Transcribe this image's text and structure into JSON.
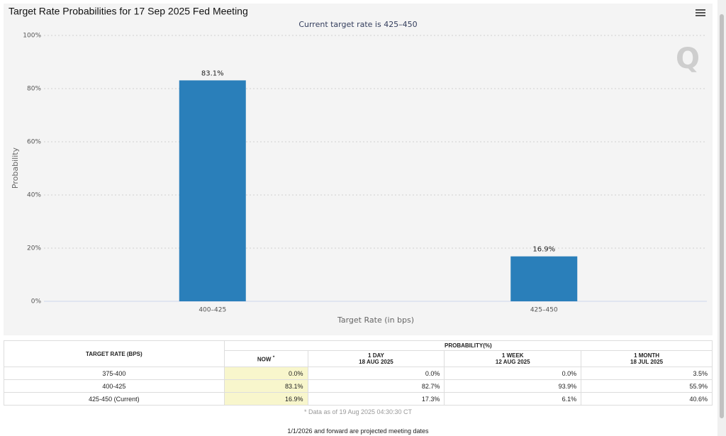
{
  "chart_data": {
    "type": "bar",
    "title": "Target Rate Probabilities for 17 Sep 2025 Fed Meeting",
    "subtitle": "Current target rate is 425–450",
    "y_label": "Probability",
    "x_label": "Target Rate (in bps)",
    "categories": [
      "400–425",
      "425–450"
    ],
    "values": [
      83.1,
      16.9
    ],
    "value_labels": [
      "83.1%",
      "16.9%"
    ],
    "color": "#2a7fba",
    "ylim": [
      0,
      100
    ],
    "yticks": [
      {
        "value": 0,
        "label": "0%"
      },
      {
        "value": 20,
        "label": "20%"
      },
      {
        "value": 40,
        "label": "40%"
      },
      {
        "value": 60,
        "label": "60%"
      },
      {
        "value": 80,
        "label": "80%"
      },
      {
        "value": 100,
        "label": "100%"
      }
    ],
    "grid": true
  },
  "table": {
    "header": {
      "rate": "TARGET RATE (BPS)",
      "probability": "PROBABILITY(%)"
    },
    "columns": [
      {
        "label": "NOW",
        "note": "*"
      },
      {
        "label": "1 DAY",
        "date": "18 AUG 2025"
      },
      {
        "label": "1 WEEK",
        "date": "12 AUG 2025"
      },
      {
        "label": "1 MONTH",
        "date": "18 JUL 2025"
      }
    ],
    "rows": [
      [
        "375-400",
        "0.0%",
        "0.0%",
        "0.0%",
        "3.5%"
      ],
      [
        "400-425",
        "83.1%",
        "82.7%",
        "93.9%",
        "55.9%"
      ],
      [
        "425-450 (Current)",
        "16.9%",
        "17.3%",
        "6.1%",
        "40.6%"
      ]
    ],
    "footnote": "* Data as of 19 Aug 2025 04:30:30 CT",
    "note": "1/1/2026 and forward are projected meeting dates"
  }
}
